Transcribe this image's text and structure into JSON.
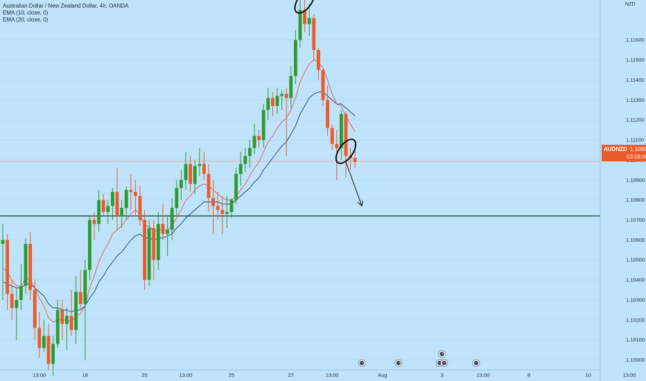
{
  "legend": {
    "title": "Australian Dollar / New Zealand Dollar, 4h, OANDA",
    "ema10": "EMA (10, close, 0)",
    "ema20": "EMA (20, close, 0)"
  },
  "price_axis": {
    "currency": "NZD",
    "badge_symbol": "AUDNZD",
    "badge_price": "1.10993",
    "badge_countdown": "03:08:06"
  },
  "colors": {
    "background": "#bfe3fb",
    "up": "#2e9a2e",
    "down": "#ea5a2a",
    "ema10": "#e0554f",
    "ema20": "#1e3a5f",
    "support": "#1f5a4a",
    "annotation": "#111111"
  },
  "chart_data": {
    "type": "candlestick",
    "symbol": "AUDNZD",
    "timeframe": "4h",
    "ylim": [
      1.0995,
      1.118
    ],
    "y_ticks": [
      1.1,
      1.101,
      1.102,
      1.103,
      1.104,
      1.105,
      1.106,
      1.107,
      1.108,
      1.109,
      1.11,
      1.111,
      1.112,
      1.113,
      1.114,
      1.115,
      1.116
    ],
    "y_tick_labels": [
      "1.10000",
      "1.10100",
      "1.10200",
      "1.10300",
      "1.10400",
      "1.10500",
      "1.10600",
      "1.10700",
      "1.10800",
      "1.10900",
      "1.11000",
      "1.11100",
      "1.11200",
      "1.11300",
      "1.11400",
      "1.11500",
      "1.11600"
    ],
    "x_ticks": [
      {
        "label": "13:00",
        "bar": 8
      },
      {
        "label": "18",
        "bar": 18
      },
      {
        "label": "20",
        "bar": 31
      },
      {
        "label": "13:00",
        "bar": 40
      },
      {
        "label": "25",
        "bar": 50
      },
      {
        "label": "27",
        "bar": 63
      },
      {
        "label": "13:00",
        "bar": 72
      },
      {
        "label": "Aug",
        "bar": 83
      },
      {
        "label": "3",
        "bar": 96
      },
      {
        "label": "13:00",
        "bar": 105
      },
      {
        "label": "8",
        "bar": 115
      },
      {
        "label": "10",
        "bar": 128
      },
      {
        "label": "13:00",
        "bar": 137
      }
    ],
    "support_level": 1.1072,
    "current_price": 1.10993,
    "candles": [
      {
        "o": 1.1058,
        "h": 1.1068,
        "l": 1.103,
        "c": 1.106
      },
      {
        "o": 1.106,
        "h": 1.1063,
        "l": 1.1025,
        "c": 1.1033
      },
      {
        "o": 1.1033,
        "h": 1.104,
        "l": 1.102,
        "c": 1.1026
      },
      {
        "o": 1.1026,
        "h": 1.1036,
        "l": 1.101,
        "c": 1.103
      },
      {
        "o": 1.103,
        "h": 1.1048,
        "l": 1.1025,
        "c": 1.1037
      },
      {
        "o": 1.1037,
        "h": 1.1061,
        "l": 1.1033,
        "c": 1.1058
      },
      {
        "o": 1.1058,
        "h": 1.1064,
        "l": 1.103,
        "c": 1.1035
      },
      {
        "o": 1.1035,
        "h": 1.104,
        "l": 1.101,
        "c": 1.1016
      },
      {
        "o": 1.1016,
        "h": 1.1024,
        "l": 1.1001,
        "c": 1.1006
      },
      {
        "o": 1.1006,
        "h": 1.102,
        "l": 1.1004,
        "c": 1.1012
      },
      {
        "o": 1.1012,
        "h": 1.1018,
        "l": 1.0995,
        "c": 1.0998
      },
      {
        "o": 1.0998,
        "h": 1.1012,
        "l": 1.0992,
        "c": 1.1008
      },
      {
        "o": 1.1008,
        "h": 1.103,
        "l": 1.1006,
        "c": 1.1025
      },
      {
        "o": 1.1025,
        "h": 1.103,
        "l": 1.101,
        "c": 1.1018
      },
      {
        "o": 1.1018,
        "h": 1.1026,
        "l": 1.1005,
        "c": 1.1022
      },
      {
        "o": 1.1022,
        "h": 1.1035,
        "l": 1.1012,
        "c": 1.1015
      },
      {
        "o": 1.1015,
        "h": 1.1042,
        "l": 1.1008,
        "c": 1.1034
      },
      {
        "o": 1.1034,
        "h": 1.1045,
        "l": 1.1025,
        "c": 1.1028
      },
      {
        "o": 1.1028,
        "h": 1.105,
        "l": 1.1,
        "c": 1.1045
      },
      {
        "o": 1.1045,
        "h": 1.1072,
        "l": 1.104,
        "c": 1.107
      },
      {
        "o": 1.107,
        "h": 1.1074,
        "l": 1.106,
        "c": 1.1068
      },
      {
        "o": 1.1068,
        "h": 1.1085,
        "l": 1.1064,
        "c": 1.108
      },
      {
        "o": 1.108,
        "h": 1.1083,
        "l": 1.1072,
        "c": 1.1074
      },
      {
        "o": 1.1074,
        "h": 1.108,
        "l": 1.1068,
        "c": 1.1077
      },
      {
        "o": 1.1077,
        "h": 1.1086,
        "l": 1.107,
        "c": 1.1084
      },
      {
        "o": 1.1084,
        "h": 1.1096,
        "l": 1.1065,
        "c": 1.1072
      },
      {
        "o": 1.1072,
        "h": 1.108,
        "l": 1.1066,
        "c": 1.1076
      },
      {
        "o": 1.1076,
        "h": 1.1087,
        "l": 1.107,
        "c": 1.1085
      },
      {
        "o": 1.1085,
        "h": 1.1093,
        "l": 1.1075,
        "c": 1.1084
      },
      {
        "o": 1.1084,
        "h": 1.109,
        "l": 1.1072,
        "c": 1.1082
      },
      {
        "o": 1.1082,
        "h": 1.1087,
        "l": 1.1067,
        "c": 1.107
      },
      {
        "o": 1.107,
        "h": 1.1075,
        "l": 1.1035,
        "c": 1.104
      },
      {
        "o": 1.104,
        "h": 1.107,
        "l": 1.1037,
        "c": 1.1066
      },
      {
        "o": 1.1066,
        "h": 1.107,
        "l": 1.104,
        "c": 1.105
      },
      {
        "o": 1.105,
        "h": 1.1074,
        "l": 1.1045,
        "c": 1.1068
      },
      {
        "o": 1.1068,
        "h": 1.1078,
        "l": 1.106,
        "c": 1.1063
      },
      {
        "o": 1.1063,
        "h": 1.1072,
        "l": 1.1052,
        "c": 1.1065
      },
      {
        "o": 1.1065,
        "h": 1.1081,
        "l": 1.106,
        "c": 1.1076
      },
      {
        "o": 1.1076,
        "h": 1.109,
        "l": 1.1072,
        "c": 1.1086
      },
      {
        "o": 1.1086,
        "h": 1.1095,
        "l": 1.108,
        "c": 1.109
      },
      {
        "o": 1.109,
        "h": 1.1104,
        "l": 1.1085,
        "c": 1.1098
      },
      {
        "o": 1.1098,
        "h": 1.1102,
        "l": 1.1084,
        "c": 1.1088
      },
      {
        "o": 1.1088,
        "h": 1.11,
        "l": 1.1083,
        "c": 1.1097
      },
      {
        "o": 1.1097,
        "h": 1.1106,
        "l": 1.1092,
        "c": 1.1098
      },
      {
        "o": 1.1098,
        "h": 1.1104,
        "l": 1.109,
        "c": 1.1093
      },
      {
        "o": 1.1093,
        "h": 1.1098,
        "l": 1.1074,
        "c": 1.1081
      },
      {
        "o": 1.1081,
        "h": 1.109,
        "l": 1.1063,
        "c": 1.1077
      },
      {
        "o": 1.1077,
        "h": 1.1084,
        "l": 1.107,
        "c": 1.1075
      },
      {
        "o": 1.1075,
        "h": 1.1082,
        "l": 1.1063,
        "c": 1.1073
      },
      {
        "o": 1.1073,
        "h": 1.1082,
        "l": 1.1066,
        "c": 1.1074
      },
      {
        "o": 1.1074,
        "h": 1.1081,
        "l": 1.1071,
        "c": 1.108
      },
      {
        "o": 1.108,
        "h": 1.1096,
        "l": 1.1078,
        "c": 1.1093
      },
      {
        "o": 1.1093,
        "h": 1.1104,
        "l": 1.1087,
        "c": 1.1098
      },
      {
        "o": 1.1098,
        "h": 1.1106,
        "l": 1.1094,
        "c": 1.1102
      },
      {
        "o": 1.1102,
        "h": 1.111,
        "l": 1.1096,
        "c": 1.1106
      },
      {
        "o": 1.1106,
        "h": 1.1118,
        "l": 1.1103,
        "c": 1.1112
      },
      {
        "o": 1.1112,
        "h": 1.1115,
        "l": 1.1106,
        "c": 1.111
      },
      {
        "o": 1.111,
        "h": 1.1128,
        "l": 1.1106,
        "c": 1.1125
      },
      {
        "o": 1.1125,
        "h": 1.1136,
        "l": 1.112,
        "c": 1.1131
      },
      {
        "o": 1.1131,
        "h": 1.1134,
        "l": 1.1122,
        "c": 1.1127
      },
      {
        "o": 1.1127,
        "h": 1.1136,
        "l": 1.1123,
        "c": 1.1132
      },
      {
        "o": 1.1132,
        "h": 1.1135,
        "l": 1.1125,
        "c": 1.1133
      },
      {
        "o": 1.1133,
        "h": 1.1136,
        "l": 1.1102,
        "c": 1.1131
      },
      {
        "o": 1.1131,
        "h": 1.1147,
        "l": 1.1126,
        "c": 1.1142
      },
      {
        "o": 1.1142,
        "h": 1.1165,
        "l": 1.1138,
        "c": 1.116
      },
      {
        "o": 1.116,
        "h": 1.118,
        "l": 1.1156,
        "c": 1.1175
      },
      {
        "o": 1.1175,
        "h": 1.118,
        "l": 1.1164,
        "c": 1.1168
      },
      {
        "o": 1.1168,
        "h": 1.1178,
        "l": 1.1162,
        "c": 1.1171
      },
      {
        "o": 1.1171,
        "h": 1.1173,
        "l": 1.115,
        "c": 1.1155
      },
      {
        "o": 1.1155,
        "h": 1.1156,
        "l": 1.114,
        "c": 1.1145
      },
      {
        "o": 1.1145,
        "h": 1.1146,
        "l": 1.1127,
        "c": 1.113
      },
      {
        "o": 1.113,
        "h": 1.1137,
        "l": 1.1112,
        "c": 1.1116
      },
      {
        "o": 1.1116,
        "h": 1.1118,
        "l": 1.1105,
        "c": 1.1108
      },
      {
        "o": 1.1108,
        "h": 1.1115,
        "l": 1.109,
        "c": 1.1106
      },
      {
        "o": 1.1106,
        "h": 1.1125,
        "l": 1.11,
        "c": 1.1123
      },
      {
        "o": 1.1123,
        "h": 1.1124,
        "l": 1.1091,
        "c": 1.1102
      },
      {
        "o": 1.1102,
        "h": 1.1106,
        "l": 1.1095,
        "c": 1.1101
      },
      {
        "o": 1.1101,
        "h": 1.1108,
        "l": 1.1096,
        "c": 1.1099
      }
    ],
    "ema10": [
      1.1046,
      1.1044,
      1.104,
      1.1037,
      1.1037,
      1.1041,
      1.104,
      1.1036,
      1.1031,
      1.1027,
      1.1021,
      1.1019,
      1.102,
      1.102,
      1.102,
      1.1019,
      1.1022,
      1.1023,
      1.1027,
      1.1036,
      1.1042,
      1.1049,
      1.1054,
      1.1058,
      1.1063,
      1.1065,
      1.1067,
      1.107,
      1.1073,
      1.1075,
      1.1073,
      1.1067,
      1.1067,
      1.1064,
      1.1065,
      1.1065,
      1.1065,
      1.1067,
      1.1071,
      1.1075,
      1.108,
      1.1082,
      1.1085,
      1.1087,
      1.1088,
      1.1087,
      1.1085,
      1.1083,
      1.1081,
      1.108,
      1.108,
      1.1082,
      1.1085,
      1.1088,
      1.1092,
      1.1096,
      1.1099,
      1.1104,
      1.1109,
      1.1112,
      1.1116,
      1.1119,
      1.1121,
      1.1125,
      1.1131,
      1.1139,
      1.1144,
      1.1148,
      1.115,
      1.1149,
      1.1146,
      1.114,
      1.1133,
      1.1128,
      1.1127,
      1.1122,
      1.1118,
      1.1114
    ],
    "ema20": [
      1.1039,
      1.1038,
      1.1037,
      1.1036,
      1.1036,
      1.1038,
      1.1038,
      1.1036,
      1.1034,
      1.1032,
      1.1028,
      1.1026,
      1.1026,
      1.1025,
      1.1025,
      1.1024,
      1.1025,
      1.1025,
      1.1027,
      1.1031,
      1.1034,
      1.1039,
      1.1042,
      1.1046,
      1.1049,
      1.1052,
      1.1054,
      1.1057,
      1.106,
      1.1062,
      1.1063,
      1.1061,
      1.1061,
      1.106,
      1.1061,
      1.1061,
      1.1062,
      1.1063,
      1.1066,
      1.1068,
      1.1071,
      1.1073,
      1.1075,
      1.1077,
      1.1079,
      1.1079,
      1.1079,
      1.1079,
      1.1078,
      1.1078,
      1.1078,
      1.108,
      1.1082,
      1.1084,
      1.1086,
      1.1089,
      1.1091,
      1.1095,
      1.1098,
      1.1101,
      1.1104,
      1.1107,
      1.1109,
      1.1113,
      1.1117,
      1.1123,
      1.1127,
      1.1131,
      1.1133,
      1.1134,
      1.1134,
      1.1132,
      1.113,
      1.1128,
      1.1128,
      1.1126,
      1.1124,
      1.1122
    ],
    "annotations": [
      {
        "type": "ellipse",
        "bar": 75,
        "price": 1.11043
      },
      {
        "type": "ellipse",
        "bar": 66,
        "price": 1.11795
      },
      {
        "type": "arrow",
        "from_bar": 75,
        "from_price": 1.1099,
        "to_bar": 78.5,
        "to_price": 1.1077
      }
    ],
    "event_markers": [
      {
        "bar": 78.5
      },
      {
        "bar": 86.5
      },
      {
        "bar": 95.5
      },
      {
        "bar": 96.5
      },
      {
        "bar": 96,
        "row": 2
      },
      {
        "bar": 103.5
      }
    ]
  }
}
